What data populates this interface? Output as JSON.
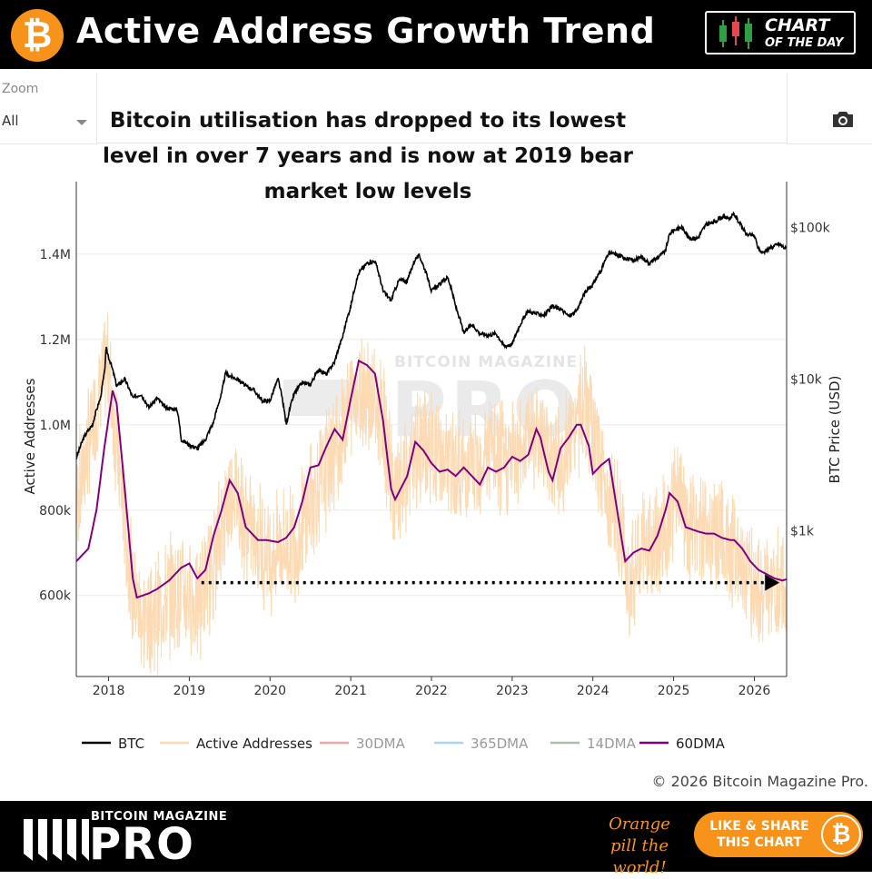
{
  "header": {
    "title": "Active Address Growth Trend",
    "badge_line1": "CHART",
    "badge_line2": "OF THE DAY",
    "logo_glyph": "₿"
  },
  "toolbar": {
    "zoom_label": "Zoom",
    "zoom_value": "All"
  },
  "annotation": "Bitcoin utilisation has dropped to its lowest level in over 7 years and is now at 2019 bear market low levels",
  "copyright": "© 2026 Bitcoin Magazine Pro.",
  "footer": {
    "brand_small": "BITCOIN MAGAZINE",
    "brand_big": "PRO",
    "tagline": "Orange pill the world!",
    "cta": "LIKE & SHARE THIS CHART",
    "cta_glyph": "₿"
  },
  "colors": {
    "accent": "#f7931a",
    "btc": "#000000",
    "active_addresses": "#fcd9b0",
    "dma30": "#f4a6a6",
    "dma365": "#a8d8f0",
    "dma14": "#a9bfa9",
    "dma60": "#800080"
  },
  "chart_data": {
    "type": "line",
    "xlabel": "",
    "ylabel": "Active Addresses",
    "y2label": "BTC Price (USD)",
    "x_ticks": [
      "2018",
      "2019",
      "2020",
      "2021",
      "2022",
      "2023",
      "2024",
      "2025",
      "2026"
    ],
    "xlim": [
      2017.6,
      2026.4
    ],
    "y_ticks": [
      {
        "v": 600000,
        "label": "600k"
      },
      {
        "v": 800000,
        "label": "800k"
      },
      {
        "v": 1000000,
        "label": "1.0M"
      },
      {
        "v": 1200000,
        "label": "1.2M"
      },
      {
        "v": 1400000,
        "label": "1.4M"
      }
    ],
    "ylim": [
      410000,
      1570000
    ],
    "y2_ticks": [
      {
        "v": 1000,
        "label": "$1k"
      },
      {
        "v": 10000,
        "label": "$10k"
      },
      {
        "v": 100000,
        "label": "$100k"
      }
    ],
    "y2_scale": "log",
    "y2lim": [
      110,
      200000
    ],
    "grid": true,
    "legend_position": "bottom",
    "legend": [
      "BTC",
      "Active Addresses",
      "30DMA",
      "365DMA",
      "14DMA",
      "60DMA"
    ],
    "reference_line": {
      "value": 630000,
      "x_start": 2019.15,
      "x_end": 2026.2,
      "style": "dotted-arrow"
    },
    "watermark": "BITCOIN MAGAZINE PRO",
    "series": [
      {
        "name": "BTC",
        "axis": "right",
        "points": [
          [
            2017.6,
            3000
          ],
          [
            2017.7,
            4200
          ],
          [
            2017.8,
            5000
          ],
          [
            2017.9,
            7500
          ],
          [
            2017.95,
            11000
          ],
          [
            2017.97,
            16000
          ],
          [
            2018.0,
            14000
          ],
          [
            2018.1,
            9000
          ],
          [
            2018.2,
            10000
          ],
          [
            2018.3,
            7500
          ],
          [
            2018.4,
            8000
          ],
          [
            2018.5,
            6500
          ],
          [
            2018.6,
            7500
          ],
          [
            2018.7,
            6500
          ],
          [
            2018.85,
            6300
          ],
          [
            2018.9,
            4000
          ],
          [
            2019.0,
            3700
          ],
          [
            2019.1,
            3500
          ],
          [
            2019.2,
            4000
          ],
          [
            2019.3,
            5200
          ],
          [
            2019.4,
            8000
          ],
          [
            2019.45,
            11000
          ],
          [
            2019.5,
            10500
          ],
          [
            2019.6,
            10000
          ],
          [
            2019.7,
            9000
          ],
          [
            2019.8,
            8500
          ],
          [
            2019.9,
            7200
          ],
          [
            2020.0,
            7200
          ],
          [
            2020.1,
            10000
          ],
          [
            2020.2,
            5000
          ],
          [
            2020.3,
            8000
          ],
          [
            2020.4,
            9500
          ],
          [
            2020.5,
            9200
          ],
          [
            2020.6,
            11500
          ],
          [
            2020.7,
            10800
          ],
          [
            2020.8,
            13000
          ],
          [
            2020.9,
            19000
          ],
          [
            2021.0,
            30000
          ],
          [
            2021.1,
            50000
          ],
          [
            2021.2,
            58000
          ],
          [
            2021.3,
            60000
          ],
          [
            2021.4,
            38000
          ],
          [
            2021.5,
            33000
          ],
          [
            2021.6,
            45000
          ],
          [
            2021.7,
            44000
          ],
          [
            2021.8,
            62000
          ],
          [
            2021.85,
            65000
          ],
          [
            2021.95,
            47000
          ],
          [
            2022.0,
            38000
          ],
          [
            2022.1,
            42000
          ],
          [
            2022.2,
            47000
          ],
          [
            2022.3,
            30000
          ],
          [
            2022.4,
            20000
          ],
          [
            2022.5,
            23000
          ],
          [
            2022.6,
            20000
          ],
          [
            2022.7,
            19500
          ],
          [
            2022.8,
            20000
          ],
          [
            2022.9,
            16500
          ],
          [
            2023.0,
            17000
          ],
          [
            2023.1,
            23000
          ],
          [
            2023.2,
            28000
          ],
          [
            2023.3,
            27000
          ],
          [
            2023.4,
            26500
          ],
          [
            2023.5,
            30000
          ],
          [
            2023.6,
            29000
          ],
          [
            2023.7,
            26000
          ],
          [
            2023.8,
            28000
          ],
          [
            2023.9,
            37000
          ],
          [
            2024.0,
            42000
          ],
          [
            2024.1,
            52000
          ],
          [
            2024.2,
            68000
          ],
          [
            2024.3,
            66000
          ],
          [
            2024.4,
            63000
          ],
          [
            2024.5,
            60000
          ],
          [
            2024.6,
            64000
          ],
          [
            2024.7,
            58000
          ],
          [
            2024.8,
            63000
          ],
          [
            2024.9,
            70000
          ],
          [
            2024.95,
            90000
          ],
          [
            2025.0,
            96000
          ],
          [
            2025.1,
            100000
          ],
          [
            2025.2,
            84000
          ],
          [
            2025.3,
            85000
          ],
          [
            2025.4,
            104000
          ],
          [
            2025.5,
            108000
          ],
          [
            2025.6,
            117000
          ],
          [
            2025.7,
            115000
          ],
          [
            2025.75,
            122000
          ],
          [
            2025.8,
            110000
          ],
          [
            2025.9,
            90000
          ],
          [
            2026.0,
            88000
          ],
          [
            2026.05,
            72000
          ],
          [
            2026.1,
            68000
          ],
          [
            2026.2,
            73000
          ],
          [
            2026.3,
            78000
          ],
          [
            2026.4,
            72000
          ]
        ]
      },
      {
        "name": "Active Addresses",
        "axis": "left",
        "points": [
          [
            2017.6,
            820000
          ],
          [
            2017.75,
            950000
          ],
          [
            2017.9,
            1080000
          ],
          [
            2018.0,
            1150000
          ],
          [
            2018.05,
            1050000
          ],
          [
            2018.15,
            850000
          ],
          [
            2018.3,
            600000
          ],
          [
            2018.45,
            540000
          ],
          [
            2018.6,
            560000
          ],
          [
            2018.8,
            610000
          ],
          [
            2019.0,
            600000
          ],
          [
            2019.1,
            580000
          ],
          [
            2019.3,
            680000
          ],
          [
            2019.45,
            800000
          ],
          [
            2019.55,
            870000
          ],
          [
            2019.7,
            760000
          ],
          [
            2019.9,
            720000
          ],
          [
            2020.0,
            700000
          ],
          [
            2020.2,
            720000
          ],
          [
            2020.35,
            730000
          ],
          [
            2020.5,
            820000
          ],
          [
            2020.7,
            900000
          ],
          [
            2020.9,
            980000
          ],
          [
            2021.0,
            1060000
          ],
          [
            2021.15,
            1100000
          ],
          [
            2021.2,
            1080000
          ],
          [
            2021.4,
            1000000
          ],
          [
            2021.55,
            820000
          ],
          [
            2021.7,
            880000
          ],
          [
            2021.9,
            960000
          ],
          [
            2022.1,
            920000
          ],
          [
            2022.3,
            890000
          ],
          [
            2022.5,
            890000
          ],
          [
            2022.7,
            940000
          ],
          [
            2022.9,
            910000
          ],
          [
            2023.1,
            950000
          ],
          [
            2023.3,
            1000000
          ],
          [
            2023.4,
            950000
          ],
          [
            2023.6,
            900000
          ],
          [
            2023.8,
            1000000
          ],
          [
            2023.9,
            1050000
          ],
          [
            2024.1,
            890000
          ],
          [
            2024.3,
            780000
          ],
          [
            2024.45,
            640000
          ],
          [
            2024.6,
            700000
          ],
          [
            2024.8,
            720000
          ],
          [
            2024.95,
            780000
          ],
          [
            2025.05,
            840000
          ],
          [
            2025.2,
            760000
          ],
          [
            2025.4,
            760000
          ],
          [
            2025.6,
            730000
          ],
          [
            2025.8,
            700000
          ],
          [
            2025.95,
            640000
          ],
          [
            2026.1,
            610000
          ],
          [
            2026.2,
            600000
          ],
          [
            2026.3,
            620000
          ],
          [
            2026.4,
            640000
          ]
        ]
      },
      {
        "name": "60DMA",
        "axis": "left",
        "points": [
          [
            2017.6,
            680000
          ],
          [
            2017.75,
            710000
          ],
          [
            2017.85,
            800000
          ],
          [
            2017.95,
            950000
          ],
          [
            2018.05,
            1080000
          ],
          [
            2018.1,
            1050000
          ],
          [
            2018.2,
            850000
          ],
          [
            2018.3,
            640000
          ],
          [
            2018.35,
            595000
          ],
          [
            2018.5,
            605000
          ],
          [
            2018.6,
            615000
          ],
          [
            2018.75,
            635000
          ],
          [
            2018.9,
            665000
          ],
          [
            2019.0,
            675000
          ],
          [
            2019.1,
            640000
          ],
          [
            2019.2,
            660000
          ],
          [
            2019.3,
            740000
          ],
          [
            2019.4,
            800000
          ],
          [
            2019.5,
            870000
          ],
          [
            2019.6,
            840000
          ],
          [
            2019.7,
            760000
          ],
          [
            2019.85,
            730000
          ],
          [
            2019.95,
            730000
          ],
          [
            2020.1,
            725000
          ],
          [
            2020.2,
            735000
          ],
          [
            2020.3,
            760000
          ],
          [
            2020.4,
            820000
          ],
          [
            2020.5,
            900000
          ],
          [
            2020.6,
            905000
          ],
          [
            2020.7,
            950000
          ],
          [
            2020.8,
            990000
          ],
          [
            2020.9,
            965000
          ],
          [
            2021.0,
            1060000
          ],
          [
            2021.1,
            1150000
          ],
          [
            2021.2,
            1140000
          ],
          [
            2021.3,
            1120000
          ],
          [
            2021.4,
            1010000
          ],
          [
            2021.5,
            850000
          ],
          [
            2021.55,
            825000
          ],
          [
            2021.7,
            880000
          ],
          [
            2021.8,
            960000
          ],
          [
            2021.9,
            940000
          ],
          [
            2022.0,
            910000
          ],
          [
            2022.1,
            890000
          ],
          [
            2022.2,
            895000
          ],
          [
            2022.3,
            880000
          ],
          [
            2022.4,
            900000
          ],
          [
            2022.5,
            880000
          ],
          [
            2022.6,
            860000
          ],
          [
            2022.7,
            900000
          ],
          [
            2022.8,
            890000
          ],
          [
            2022.9,
            900000
          ],
          [
            2023.0,
            925000
          ],
          [
            2023.1,
            915000
          ],
          [
            2023.2,
            930000
          ],
          [
            2023.3,
            990000
          ],
          [
            2023.35,
            970000
          ],
          [
            2023.45,
            890000
          ],
          [
            2023.5,
            870000
          ],
          [
            2023.6,
            945000
          ],
          [
            2023.7,
            970000
          ],
          [
            2023.8,
            1000000
          ],
          [
            2023.85,
            1000000
          ],
          [
            2023.95,
            950000
          ],
          [
            2024.0,
            885000
          ],
          [
            2024.1,
            905000
          ],
          [
            2024.2,
            920000
          ],
          [
            2024.3,
            800000
          ],
          [
            2024.4,
            680000
          ],
          [
            2024.5,
            700000
          ],
          [
            2024.6,
            710000
          ],
          [
            2024.7,
            705000
          ],
          [
            2024.8,
            740000
          ],
          [
            2024.9,
            800000
          ],
          [
            2024.95,
            840000
          ],
          [
            2025.05,
            820000
          ],
          [
            2025.15,
            760000
          ],
          [
            2025.3,
            750000
          ],
          [
            2025.4,
            745000
          ],
          [
            2025.5,
            745000
          ],
          [
            2025.6,
            735000
          ],
          [
            2025.7,
            730000
          ],
          [
            2025.75,
            730000
          ],
          [
            2025.85,
            710000
          ],
          [
            2025.95,
            680000
          ],
          [
            2026.05,
            660000
          ],
          [
            2026.15,
            650000
          ],
          [
            2026.25,
            640000
          ],
          [
            2026.35,
            635000
          ],
          [
            2026.4,
            638000
          ]
        ]
      }
    ]
  }
}
